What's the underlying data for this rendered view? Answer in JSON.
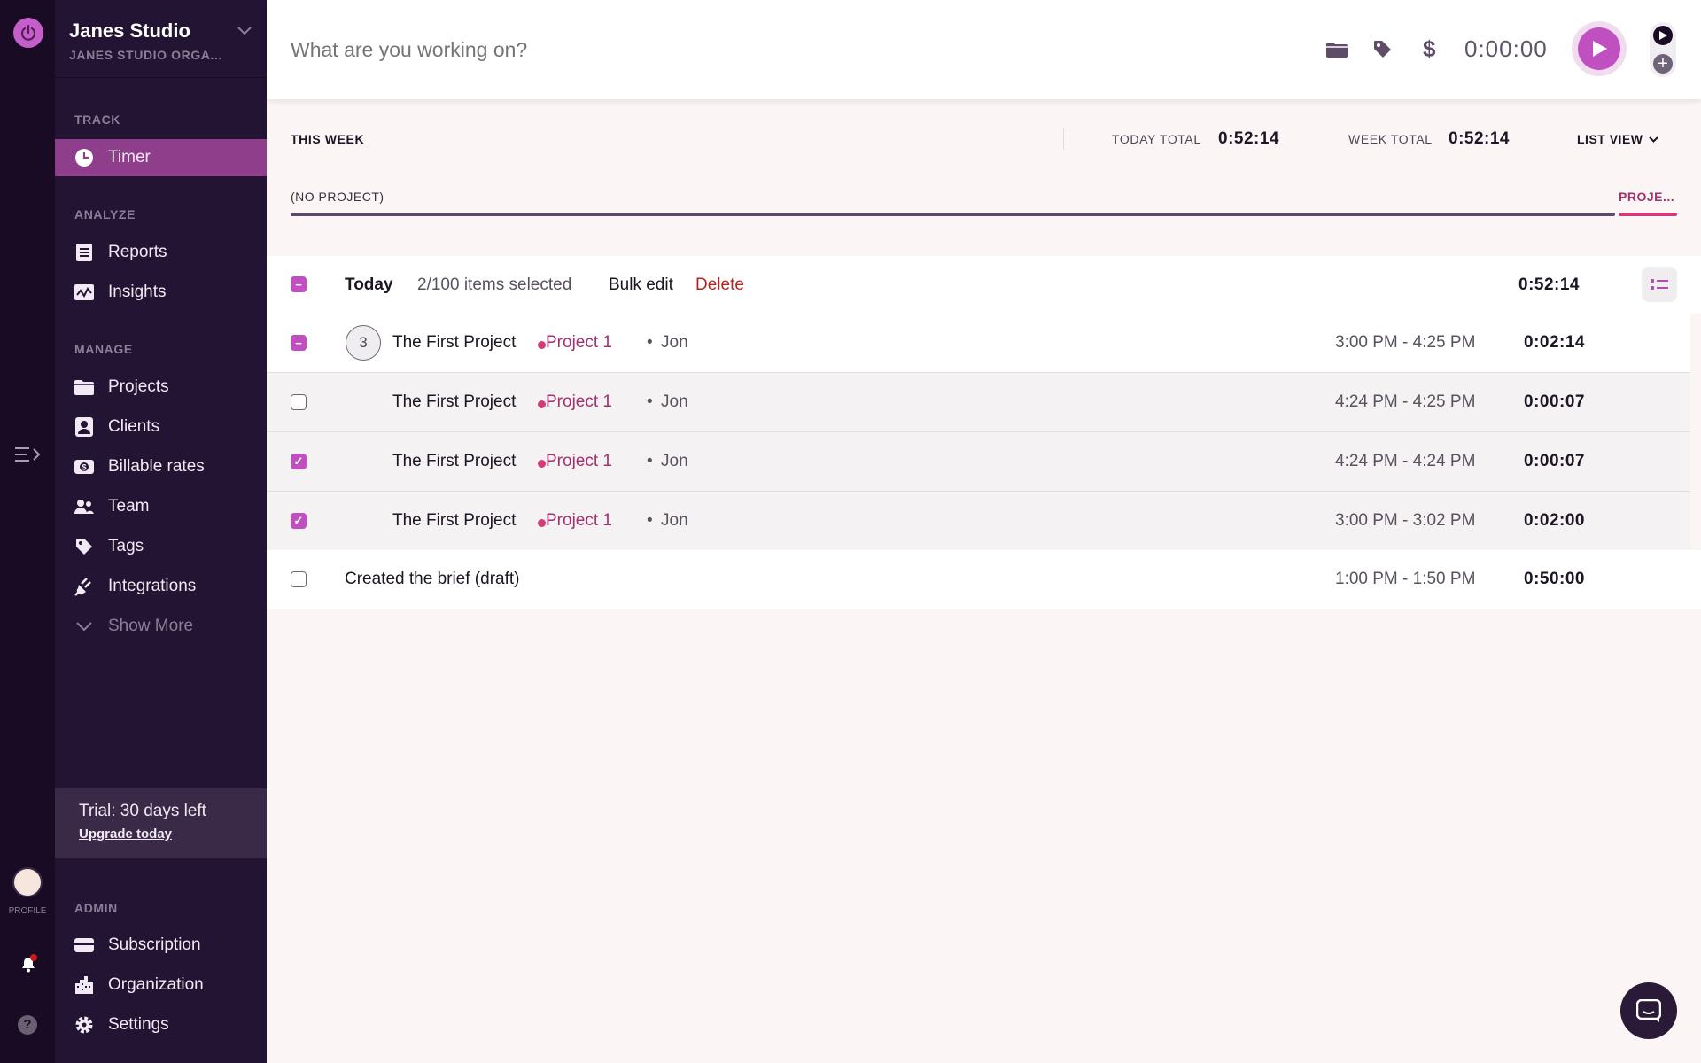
{
  "rail": {
    "profile_label": "PROFILE"
  },
  "workspace": {
    "name": "Janes Studio",
    "org": "JANES STUDIO ORGA..."
  },
  "sidebar": {
    "track_label": "TRACK",
    "timer": "Timer",
    "analyze_label": "ANALYZE",
    "reports": "Reports",
    "insights": "Insights",
    "manage_label": "MANAGE",
    "projects": "Projects",
    "clients": "Clients",
    "billable_rates": "Billable rates",
    "team": "Team",
    "tags": "Tags",
    "integrations": "Integrations",
    "show_more": "Show More",
    "trial_text": "Trial: 30 days left",
    "upgrade": "Upgrade today",
    "admin_label": "ADMIN",
    "subscription": "Subscription",
    "organization": "Organization",
    "settings": "Settings"
  },
  "topbar": {
    "placeholder": "What are you working on?",
    "timer": "0:00:00"
  },
  "summary": {
    "period": "THIS WEEK",
    "today_label": "TODAY TOTAL",
    "today_value": "0:52:14",
    "week_label": "WEEK TOTAL",
    "week_value": "0:52:14",
    "view": "LIST VIEW"
  },
  "project_bar": {
    "left_label": "(NO PROJECT)",
    "right_label": "PROJE...",
    "colors": {
      "no_project": "#5a4a66",
      "project": "#d33a78"
    }
  },
  "day": {
    "label": "Today",
    "selection": "2/100 items selected",
    "bulk_edit": "Bulk edit",
    "delete": "Delete",
    "total": "0:52:14"
  },
  "entries": [
    {
      "state": "partial",
      "group_count": "3",
      "description": "The First Project",
      "project": "Project 1",
      "user": "Jon",
      "range": "3:00 PM - 4:25 PM",
      "duration": "0:02:14"
    },
    {
      "state": "unchecked",
      "description": "The First Project",
      "project": "Project 1",
      "user": "Jon",
      "range": "4:24 PM - 4:25 PM",
      "duration": "0:00:07"
    },
    {
      "state": "checked",
      "description": "The First Project",
      "project": "Project 1",
      "user": "Jon",
      "range": "4:24 PM - 4:24 PM",
      "duration": "0:00:07"
    },
    {
      "state": "checked",
      "description": "The First Project",
      "project": "Project 1",
      "user": "Jon",
      "range": "3:00 PM - 3:02 PM",
      "duration": "0:02:00"
    },
    {
      "state": "unchecked",
      "description": "Created the brief (draft)",
      "range": "1:00 PM - 1:50 PM",
      "duration": "0:50:00"
    }
  ],
  "colors": {
    "accent": "#c04fbf",
    "sidebar": "#241433",
    "rail": "#1a0b24",
    "active_nav": "#8e3e8a",
    "delete": "#b3261e"
  }
}
